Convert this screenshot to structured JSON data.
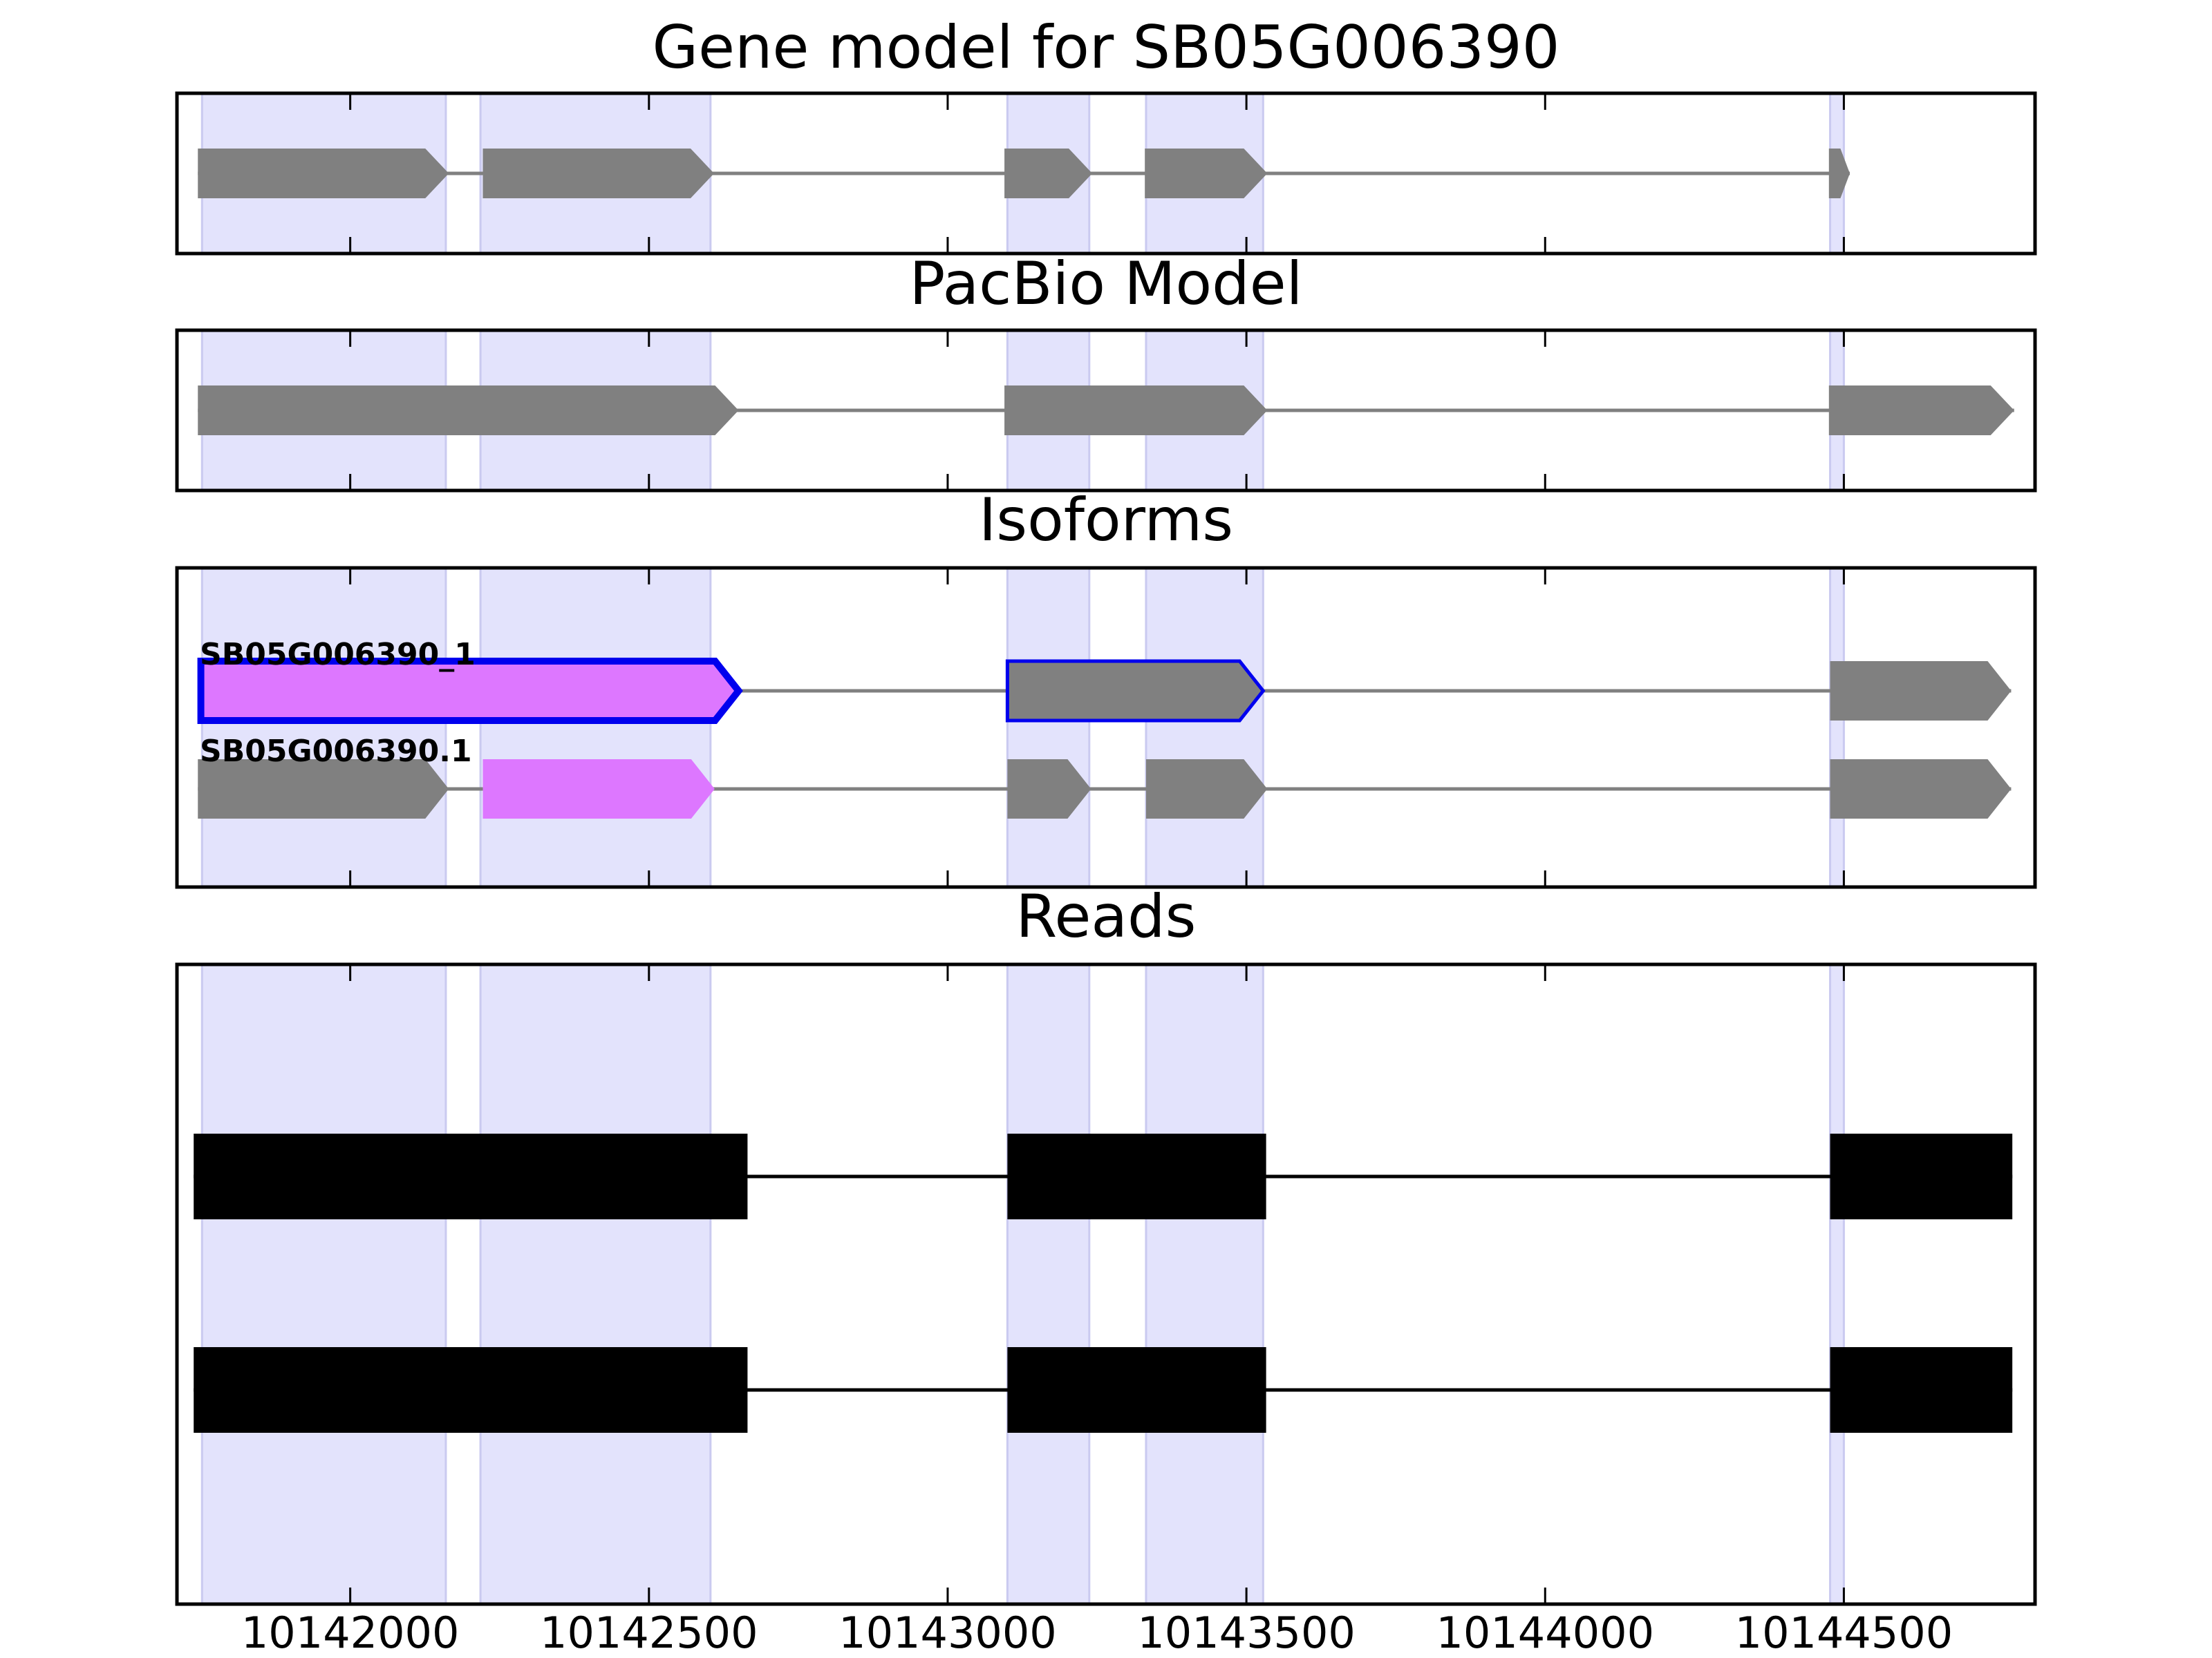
{
  "colors": {
    "exon_band": "#e3e3fc",
    "exon_band_edge": "#cacaf0",
    "gene_feature": "#808080",
    "intron": "#808080",
    "highlight": "#dd77ff",
    "outline": "#0000ee",
    "read": "#000000"
  },
  "x_axis": {
    "range": [
      10141710,
      10144820
    ],
    "ticks": [
      10142000,
      10142500,
      10143000,
      10143500,
      10144000,
      10144500
    ],
    "tick_labels": [
      "10142000",
      "10142500",
      "10143000",
      "10143500",
      "10144000",
      "10144500"
    ]
  },
  "exon_bands": [
    [
      10141752,
      10142160
    ],
    [
      10142218,
      10142603
    ],
    [
      10143100,
      10143237
    ],
    [
      10143332,
      10143528
    ],
    [
      10144477,
      10144500
    ]
  ],
  "panels": [
    {
      "id": "gene-model",
      "title": "Gene model for SB05G006390",
      "tracks": [
        {
          "exons": [
            [
              10141745,
              10142165
            ],
            [
              10142222,
              10142609
            ],
            [
              10143095,
              10143242
            ],
            [
              10143330,
              10143535
            ],
            [
              10144475,
              10144510
            ]
          ],
          "highlight": []
        }
      ]
    },
    {
      "id": "pacbio-model",
      "title": "PacBio Model",
      "tracks": [
        {
          "exons": [
            [
              10141745,
              10142650
            ],
            [
              10143095,
              10143535
            ],
            [
              10144475,
              10144785
            ]
          ],
          "highlight": []
        }
      ]
    },
    {
      "id": "isoforms",
      "title": "Isoforms",
      "tracks": [
        {
          "label": "SB05G006390_1",
          "exons": [
            [
              10141750,
              10142650
            ],
            [
              10143100,
              10143528
            ],
            [
              10144477,
              10144780
            ]
          ],
          "highlight": [
            0
          ],
          "outlined": [
            0,
            1
          ]
        },
        {
          "label": "SB05G006390.1",
          "exons": [
            [
              10141745,
              10142165
            ],
            [
              10142222,
              10142610
            ],
            [
              10143100,
              10143240
            ],
            [
              10143332,
              10143535
            ],
            [
              10144477,
              10144780
            ]
          ],
          "highlight": [
            1
          ],
          "outlined": []
        }
      ]
    },
    {
      "id": "reads",
      "title": "Reads",
      "tracks": [
        {
          "exons": [
            [
              10141738,
              10142665
            ],
            [
              10143100,
              10143533
            ],
            [
              10144477,
              10144782
            ]
          ]
        },
        {
          "exons": [
            [
              10141738,
              10142665
            ],
            [
              10143100,
              10143533
            ],
            [
              10144477,
              10144782
            ]
          ]
        }
      ]
    }
  ]
}
